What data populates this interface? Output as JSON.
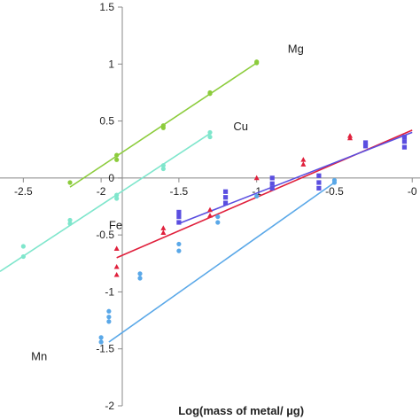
{
  "chart_data": {
    "type": "scatter",
    "xlabel": "Log(mass of metal/ µg)",
    "ylabel": "",
    "xlim": [
      -2.65,
      0.05
    ],
    "ylim": [
      -2,
      1.5
    ],
    "x_ticks": [
      -2.5,
      -2,
      -1.5,
      -1,
      -0.5,
      0
    ],
    "x_tick_labels": [
      "-2.5",
      "-2",
      "-1.5",
      "-1",
      "-0.5",
      "-0"
    ],
    "y_ticks": [
      -2,
      -1.5,
      -1,
      -0.5,
      0,
      0.5,
      1,
      1.5
    ],
    "y_tick_labels": [
      "-2",
      "-1.5",
      "-1",
      "-0.5",
      "0",
      "0.5",
      "1",
      "1.5"
    ],
    "grid": false,
    "legend": "labels next to lines",
    "series": [
      {
        "name": "Mg",
        "color": "#8ccc3c",
        "marker": "circle",
        "points": [
          [
            -2.2,
            -0.04
          ],
          [
            -1.9,
            0.16
          ],
          [
            -1.9,
            0.2
          ],
          [
            -1.6,
            0.44
          ],
          [
            -1.6,
            0.46
          ],
          [
            -1.3,
            0.74
          ],
          [
            -1.3,
            0.75
          ],
          [
            -1.0,
            1.01
          ],
          [
            -1.0,
            1.02
          ]
        ],
        "fit": [
          [
            -2.2,
            -0.08
          ],
          [
            -1.0,
            1.01
          ]
        ]
      },
      {
        "name": "Cu",
        "color": "#7fe6cc",
        "marker": "circle",
        "points": [
          [
            -2.5,
            -0.6
          ],
          [
            -2.5,
            -0.69
          ],
          [
            -2.2,
            -0.37
          ],
          [
            -2.2,
            -0.4
          ],
          [
            -1.9,
            -0.15
          ],
          [
            -1.9,
            -0.18
          ],
          [
            -1.6,
            0.08
          ],
          [
            -1.6,
            0.11
          ],
          [
            -1.3,
            0.36
          ],
          [
            -1.3,
            0.4
          ]
        ],
        "fit": [
          [
            -2.65,
            -0.82
          ],
          [
            -1.3,
            0.39
          ]
        ]
      },
      {
        "name": "Fe",
        "color": "#e0203c",
        "marker": "triangle",
        "points": [
          [
            -1.9,
            -0.62
          ],
          [
            -1.9,
            -0.78
          ],
          [
            -1.9,
            -0.85
          ],
          [
            -1.6,
            -0.44
          ],
          [
            -1.6,
            -0.48
          ],
          [
            -1.3,
            -0.28
          ],
          [
            -1.3,
            -0.33
          ],
          [
            -1.0,
            0.0
          ],
          [
            -0.7,
            0.12
          ],
          [
            -0.7,
            0.16
          ],
          [
            -0.4,
            0.35
          ],
          [
            -0.4,
            0.37
          ]
        ],
        "fit": [
          [
            -1.9,
            -0.7
          ],
          [
            0.0,
            0.42
          ]
        ]
      },
      {
        "name": "",
        "color": "#5a4ee0",
        "marker": "square",
        "points": [
          [
            -1.5,
            -0.3
          ],
          [
            -1.5,
            -0.34
          ],
          [
            -1.5,
            -0.39
          ],
          [
            -1.2,
            -0.12
          ],
          [
            -1.2,
            -0.17
          ],
          [
            -1.2,
            -0.22
          ],
          [
            -0.9,
            0.0
          ],
          [
            -0.9,
            -0.05
          ],
          [
            -0.9,
            -0.09
          ],
          [
            -0.6,
            0.02
          ],
          [
            -0.6,
            -0.04
          ],
          [
            -0.6,
            -0.09
          ],
          [
            -0.3,
            0.31
          ],
          [
            -0.3,
            0.28
          ],
          [
            -0.05,
            0.36
          ],
          [
            -0.05,
            0.32
          ],
          [
            -0.05,
            0.27
          ]
        ],
        "fit": [
          [
            -1.5,
            -0.4
          ],
          [
            0.0,
            0.4
          ]
        ]
      },
      {
        "name": "Mn",
        "color": "#5aa8e8",
        "marker": "circle",
        "points": [
          [
            -2.0,
            -1.4
          ],
          [
            -2.0,
            -1.44
          ],
          [
            -1.95,
            -1.17
          ],
          [
            -1.95,
            -1.22
          ],
          [
            -1.95,
            -1.26
          ],
          [
            -1.75,
            -0.84
          ],
          [
            -1.75,
            -0.88
          ],
          [
            -1.5,
            -0.58
          ],
          [
            -1.5,
            -0.64
          ],
          [
            -1.25,
            -0.34
          ],
          [
            -1.25,
            -0.39
          ],
          [
            -1.0,
            -0.16
          ],
          [
            -0.5,
            -0.02
          ],
          [
            -0.5,
            -0.04
          ]
        ],
        "fit": [
          [
            -1.95,
            -1.44
          ],
          [
            -0.5,
            -0.04
          ]
        ]
      }
    ]
  }
}
